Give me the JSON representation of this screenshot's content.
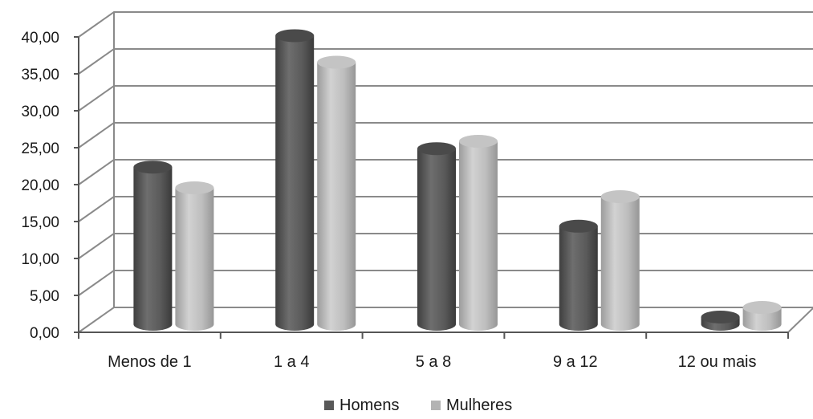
{
  "chart_data": {
    "type": "bar",
    "title": "",
    "xlabel": "",
    "ylabel": "",
    "categories": [
      "Menos de 1",
      "1 a 4",
      "5 a 8",
      "9 a 12",
      "12 ou mais"
    ],
    "series": [
      {
        "name": "Homens",
        "values": [
          21.5,
          39.3,
          24.0,
          13.5,
          1.2
        ]
      },
      {
        "name": "Mulheres",
        "values": [
          18.7,
          35.7,
          25.0,
          17.5,
          2.5
        ]
      }
    ],
    "ylim": [
      0,
      40
    ],
    "yticks": [
      "0,00",
      "5,00",
      "10,00",
      "15,00",
      "20,00",
      "25,00",
      "30,00",
      "35,00",
      "40,00"
    ],
    "grid": true,
    "style": "3d-cylinder",
    "legend_position": "bottom",
    "colors": {
      "Homens": "#595959",
      "Mulheres": "#b3b3b3",
      "grid": "#8a8a8a",
      "axis": "#555555"
    }
  }
}
